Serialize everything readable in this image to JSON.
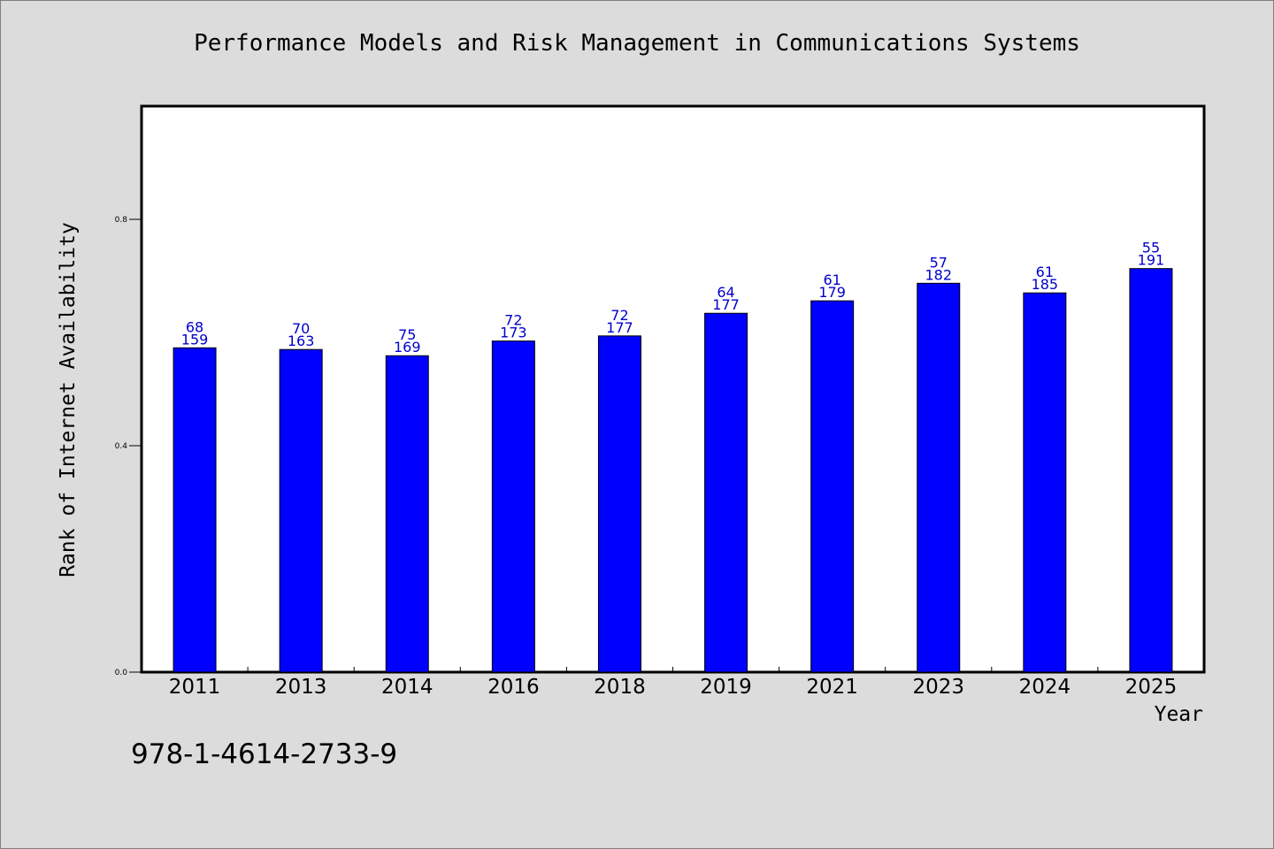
{
  "chart_data": {
    "type": "bar",
    "title": "Performance Models and Risk Management in Communications Systems",
    "xlabel": "Year",
    "ylabel": "Rank of Internet Availability",
    "categories": [
      "2011",
      "2013",
      "2014",
      "2016",
      "2018",
      "2019",
      "2021",
      "2023",
      "2024",
      "2025"
    ],
    "values": [
      0.573,
      0.57,
      0.559,
      0.585,
      0.594,
      0.634,
      0.656,
      0.687,
      0.67,
      0.713
    ],
    "annotations_top": [
      "68",
      "70",
      "75",
      "72",
      "72",
      "64",
      "61",
      "57",
      "61",
      "55"
    ],
    "annotations_bottom": [
      "159",
      "163",
      "169",
      "173",
      "177",
      "177",
      "179",
      "182",
      "185",
      "191"
    ],
    "yticks": [
      "0.0",
      "0.4",
      "0.8"
    ],
    "ytick_values": [
      0.0,
      0.4,
      0.8
    ],
    "ylim": [
      0,
      1.0
    ],
    "grid": false,
    "legend": "none",
    "colors": {
      "bar": "#0000ff",
      "annotation": "#0000cc",
      "plot_background": "#ffffff",
      "page_background": "#dcdcdc"
    }
  },
  "footer": {
    "isbn": "978-1-4614-2733-9"
  }
}
